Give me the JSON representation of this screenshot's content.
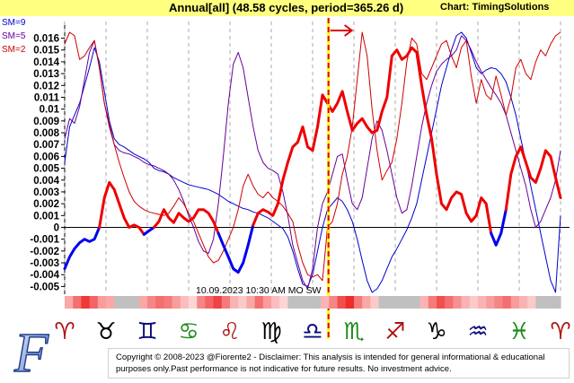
{
  "header": {
    "title": "Annual[all]  (48.58 cycles, period=365.26 d)",
    "credit": "Chart: TimingSolutions"
  },
  "legend": [
    {
      "label": "SM=9",
      "color": "#0000cc"
    },
    {
      "label": "SM=5",
      "color": "#660099"
    },
    {
      "label": "SM=2",
      "color": "#cc0000"
    }
  ],
  "date_label": "10.09.2023  10:30 AM MO  SW",
  "zodiac_signs": [
    {
      "glyph": "♈",
      "color": "#b01010",
      "name": "aries-icon"
    },
    {
      "glyph": "♉",
      "color": "#000000",
      "name": "taurus-icon"
    },
    {
      "glyph": "♊",
      "color": "#0b0b7a",
      "name": "gemini-icon"
    },
    {
      "glyph": "♋",
      "color": "#1a8a1a",
      "name": "cancer-icon"
    },
    {
      "glyph": "♌",
      "color": "#b01010",
      "name": "leo-icon"
    },
    {
      "glyph": "♍",
      "color": "#000000",
      "name": "virgo-icon"
    },
    {
      "glyph": "♎",
      "color": "#0b0b7a",
      "name": "libra-icon"
    },
    {
      "glyph": "♏",
      "color": "#1a8a1a",
      "name": "scorpio-icon"
    },
    {
      "glyph": "♐",
      "color": "#b01010",
      "name": "sagittarius-icon"
    },
    {
      "glyph": "♑",
      "color": "#000000",
      "name": "capricorn-icon"
    },
    {
      "glyph": "♒",
      "color": "#0b0b7a",
      "name": "aquarius-icon"
    },
    {
      "glyph": "♓",
      "color": "#1a8a1a",
      "name": "pisces-icon"
    },
    {
      "glyph": "♈",
      "color": "#b01010",
      "name": "aries-icon"
    }
  ],
  "logo_letter": "F",
  "copyright": {
    "line1": "Copyright © 2008-2023 @Fiorente2 -  Disclaimer: This analysis is intended for general informational & educational",
    "line2": "purposes only.Past performance is not indicative for future results. No investment advice."
  },
  "chart_data": {
    "type": "line",
    "x": [
      0,
      1,
      2,
      3,
      4,
      5,
      6,
      7,
      8,
      9,
      10,
      11,
      12,
      13,
      14,
      15,
      16,
      17,
      18,
      19,
      20,
      21,
      22,
      23,
      24,
      25,
      26,
      27,
      28,
      29,
      30,
      31,
      32,
      33,
      34,
      35,
      36,
      37,
      38,
      39,
      40,
      41,
      42,
      43,
      44,
      45,
      46,
      47,
      48,
      49,
      50,
      51,
      52,
      53,
      54,
      55,
      56,
      57,
      58,
      59,
      60,
      61,
      62,
      63,
      64,
      65,
      66,
      67,
      68,
      69,
      70,
      71,
      72,
      73,
      74,
      75,
      76,
      77,
      78,
      79,
      80,
      81,
      82,
      83,
      84,
      85,
      86,
      87,
      88,
      89,
      90,
      91,
      92,
      93,
      94,
      95,
      96,
      97,
      98,
      99,
      100
    ],
    "ylim": [
      -0.0055,
      0.0168
    ],
    "yticks": [
      -0.005,
      -0.004,
      -0.003,
      -0.002,
      -0.001,
      0,
      0.001,
      0.002,
      0.003,
      0.004,
      0.005,
      0.006,
      0.007,
      0.008,
      0.009,
      0.01,
      0.011,
      0.012,
      0.013,
      0.014,
      0.015,
      0.016
    ],
    "ytick_labels": [
      "-0.005",
      "-0.004",
      "-0.003",
      "-0.002",
      "-0.001",
      "0",
      "0.001",
      "0.002",
      "0.003",
      "0.004",
      "0.005",
      "0.006",
      "0.007",
      "0.008",
      "0.009",
      "0.01",
      "0.011",
      "0.012",
      "0.013",
      "0.014",
      "0.015",
      "0.016"
    ],
    "cursor_x": 53.2,
    "grid": "vertical dashed",
    "series": [
      {
        "name": "SM=9",
        "color": "#0000cc",
        "width": 1,
        "values": [
          0.0055,
          0.0085,
          0.0095,
          0.0105,
          0.012,
          0.0135,
          0.0152,
          0.014,
          0.0115,
          0.009,
          0.0075,
          0.007,
          0.0068,
          0.0065,
          0.0062,
          0.006,
          0.0058,
          0.0055,
          0.005,
          0.0048,
          0.0047,
          0.0045,
          0.0042,
          0.004,
          0.0038,
          0.0036,
          0.0035,
          0.0034,
          0.0033,
          0.0032,
          0.003,
          0.0028,
          0.0025,
          0.0022,
          0.002,
          0.0018,
          0.0016,
          0.0015,
          0.0013,
          0.0012,
          0.001,
          0.0008,
          0.0005,
          0.0002,
          -0.0001,
          -0.0008,
          -0.002,
          -0.0035,
          -0.0048,
          -0.005,
          -0.004,
          -0.002,
          0.0,
          0.0015,
          0.002,
          0.0025,
          0.0022,
          0.0015,
          0.0005,
          -0.001,
          -0.0028,
          -0.0045,
          -0.0055,
          -0.0052,
          -0.0045,
          -0.0035,
          -0.0025,
          -0.0018,
          -0.001,
          -0.0002,
          0.0008,
          0.002,
          0.004,
          0.006,
          0.008,
          0.01,
          0.012,
          0.0135,
          0.015,
          0.0162,
          0.0165,
          0.016,
          0.0148,
          0.0135,
          0.013,
          0.0133,
          0.0135,
          0.0134,
          0.013,
          0.0123,
          0.011,
          0.0095,
          0.0075,
          0.0055,
          0.0035,
          0.0015,
          -0.0005,
          -0.0025,
          -0.0045,
          -0.0055,
          0.001
        ]
      },
      {
        "name": "SM=5",
        "color": "#660099",
        "width": 1,
        "values": [
          0.0075,
          0.0092,
          0.0088,
          0.0102,
          0.0125,
          0.0148,
          0.0158,
          0.0135,
          0.0105,
          0.0085,
          0.007,
          0.0065,
          0.0063,
          0.0062,
          0.006,
          0.0058,
          0.0055,
          0.0053,
          0.0052,
          0.005,
          0.0048,
          0.0045,
          0.004,
          0.0032,
          0.0022,
          0.001,
          0.0,
          -0.0012,
          -0.002,
          -0.0022,
          -0.001,
          0.002,
          0.006,
          0.0105,
          0.0138,
          0.0148,
          0.0135,
          0.011,
          0.0085,
          0.0065,
          0.0055,
          0.005,
          0.0048,
          0.0045,
          0.003,
          0.001,
          -0.0015,
          -0.003,
          -0.0045,
          -0.0052,
          -0.0035,
          0.0,
          0.002,
          0.003,
          0.0045,
          0.006,
          0.0062,
          0.004,
          0.002,
          0.0015,
          0.0025,
          0.005,
          0.0075,
          0.009,
          0.0082,
          0.0065,
          0.0045,
          0.0025,
          0.0012,
          0.0015,
          0.0035,
          0.006,
          0.0085,
          0.0105,
          0.012,
          0.0132,
          0.0138,
          0.0142,
          0.0145,
          0.015,
          0.0162,
          0.0158,
          0.015,
          0.014,
          0.0132,
          0.0125,
          0.0118,
          0.0112,
          0.0105,
          0.0095,
          0.008,
          0.0065,
          0.005,
          0.0035,
          0.0015,
          0.0,
          0.0005,
          0.0015,
          0.0025,
          0.004,
          0.0065
        ]
      },
      {
        "name": "SM=2",
        "color": "#cc0000",
        "width": 1,
        "values": [
          0.0155,
          0.0165,
          0.0162,
          0.0142,
          0.0145,
          0.0152,
          0.0158,
          0.0135,
          0.0105,
          0.0088,
          0.007,
          0.0055,
          0.0042,
          0.003,
          0.0022,
          0.0018,
          0.0015,
          0.0013,
          0.0012,
          0.0011,
          0.001,
          0.0012,
          0.0018,
          0.0025,
          0.002,
          0.0012,
          0.0005,
          -0.0005,
          -0.0015,
          -0.0025,
          -0.003,
          -0.0028,
          -0.002,
          -0.001,
          0.0,
          0.0015,
          0.0035,
          0.0045,
          0.0035,
          0.0028,
          0.0025,
          0.003,
          0.0025,
          0.0022,
          0.0018,
          0.0012,
          0.0005,
          -0.0015,
          -0.003,
          -0.004,
          -0.0042,
          -0.004,
          -0.0045,
          0.0,
          0.0005,
          0.002,
          0.0045,
          0.006,
          0.0085,
          0.0125,
          0.0165,
          0.0145,
          0.01,
          0.0065,
          0.004,
          0.0048,
          0.0055,
          0.0075,
          0.0105,
          0.014,
          0.016,
          0.0155,
          0.013,
          0.0125,
          0.0135,
          0.0145,
          0.0155,
          0.0158,
          0.0145,
          0.0135,
          0.0152,
          0.0158,
          0.0128,
          0.0105,
          0.0125,
          0.0112,
          0.0108,
          0.0128,
          0.0112,
          0.0095,
          0.011,
          0.0135,
          0.0142,
          0.013,
          0.0125,
          0.014,
          0.015,
          0.0145,
          0.0155,
          0.0162,
          0.0165
        ]
      },
      {
        "name": "main",
        "color": "#ee0000",
        "color_neg": "#0000ee",
        "width": 3,
        "values": [
          -0.0035,
          -0.0025,
          -0.0018,
          -0.0013,
          -0.001,
          -0.0012,
          -0.001,
          0.0,
          0.0025,
          0.0038,
          0.0032,
          0.002,
          0.0008,
          0.0,
          0.0002,
          0.0,
          -0.0006,
          -0.0003,
          0.0,
          0.0005,
          0.0015,
          0.0008,
          0.0004,
          0.0012,
          0.0008,
          0.0005,
          0.0008,
          0.0015,
          0.0015,
          0.0012,
          0.0005,
          -0.0005,
          -0.0015,
          -0.0025,
          -0.0035,
          -0.0038,
          -0.003,
          -0.0015,
          0.0002,
          0.0012,
          0.0015,
          0.0013,
          0.001,
          0.002,
          0.004,
          0.0055,
          0.0068,
          0.0072,
          0.0085,
          0.0068,
          0.0065,
          0.0085,
          0.0112,
          0.0105,
          0.0098,
          0.0105,
          0.0115,
          0.0098,
          0.0082,
          0.0088,
          0.0092,
          0.0085,
          0.008,
          0.0082,
          0.0098,
          0.011,
          0.0145,
          0.015,
          0.0142,
          0.0145,
          0.0152,
          0.0148,
          0.012,
          0.0095,
          0.0075,
          0.0045,
          0.002,
          0.0015,
          0.0025,
          0.003,
          0.0028,
          0.0012,
          0.0005,
          0.001,
          0.0025,
          0.002,
          -0.0005,
          -0.0015,
          -0.0005,
          0.0015,
          0.0045,
          0.006,
          0.0068,
          0.0055,
          0.0042,
          0.0038,
          0.005,
          0.0065,
          0.006,
          0.0042,
          0.0025
        ]
      }
    ]
  }
}
